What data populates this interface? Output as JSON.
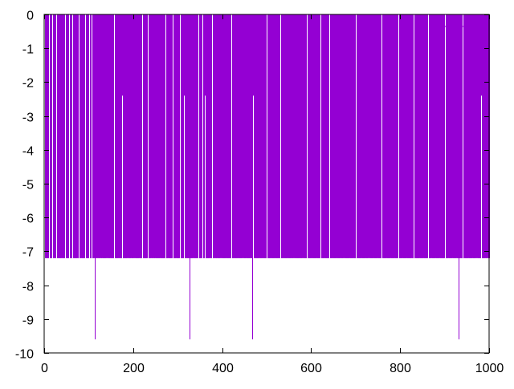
{
  "chart_data": {
    "type": "impulse",
    "xlim": [
      0,
      1000
    ],
    "ylim": [
      -10,
      0
    ],
    "x_ticks": [
      "0",
      "200",
      "400",
      "600",
      "800",
      "1000"
    ],
    "y_ticks": [
      "0",
      "-1",
      "-2",
      "-3",
      "-4",
      "-5",
      "-6",
      "-7",
      "-8",
      "-9",
      "-10"
    ],
    "grid": false,
    "legend": "top-right",
    "series_color": "#9400d3",
    "x_points": [
      1,
      1000
    ],
    "default_value": -7.2,
    "exceptions": [
      {
        "x": 13,
        "y": -2.4
      },
      {
        "x": 32,
        "y": -2.4
      },
      {
        "x": 88,
        "y": -2.4
      },
      {
        "x": 114,
        "y": -9.6
      },
      {
        "x": 175,
        "y": -2.4
      },
      {
        "x": 314,
        "y": -2.4
      },
      {
        "x": 327,
        "y": -9.6
      },
      {
        "x": 336,
        "y": -2.4
      },
      {
        "x": 361,
        "y": -2.4
      },
      {
        "x": 468,
        "y": -9.6
      },
      {
        "x": 469,
        "y": -2.4
      },
      {
        "x": 484,
        "y": -2.4
      },
      {
        "x": 931,
        "y": -9.6
      },
      {
        "x": 982,
        "y": -2.4
      }
    ],
    "missing_x": [
      10,
      11,
      18,
      19,
      22,
      23,
      26,
      27,
      40,
      41,
      47,
      48,
      56,
      57,
      63,
      64,
      77,
      78,
      92,
      93,
      100,
      101,
      106,
      107,
      118,
      119,
      125,
      126,
      141,
      142,
      157,
      158,
      168,
      169,
      188,
      189,
      201,
      202,
      220,
      221,
      232,
      233,
      244,
      245,
      272,
      273,
      288,
      289,
      304,
      305,
      318,
      319,
      346,
      347,
      355,
      356,
      372,
      373,
      377,
      378,
      383,
      384,
      396,
      397,
      420,
      421,
      446,
      447,
      470,
      471,
      499,
      500,
      530,
      531,
      560,
      561,
      580,
      581,
      590,
      591,
      620,
      621,
      640,
      641,
      672,
      673,
      700,
      701,
      728,
      729,
      758,
      759,
      795,
      796,
      830,
      831,
      862,
      863,
      900,
      901,
      940,
      941,
      970,
      971,
      995,
      996
    ]
  }
}
